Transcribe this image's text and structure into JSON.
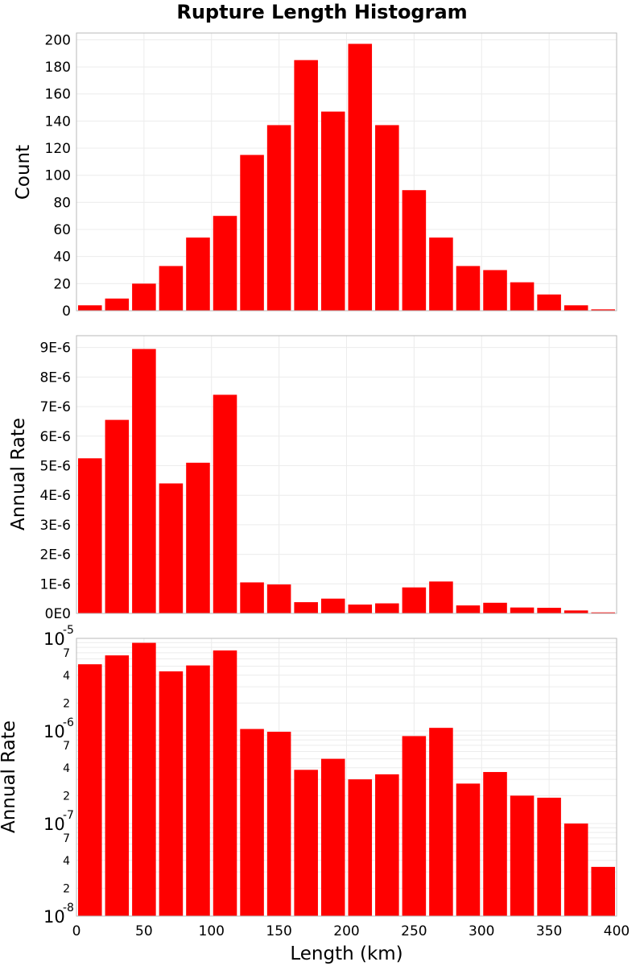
{
  "title": "Rupture Length Histogram",
  "colors": {
    "bar": "#ff0000",
    "grid": "#ececec",
    "frame": "#b9b9b9"
  },
  "chart_data": [
    {
      "type": "bar",
      "panel": "top",
      "ylabel": "Count",
      "xlabel": "",
      "ylim": [
        0,
        205
      ],
      "y_ticks": [
        0,
        20,
        40,
        60,
        80,
        100,
        120,
        140,
        160,
        180,
        200
      ],
      "y_tick_labels": [
        "0",
        "20",
        "40",
        "60",
        "80",
        "100",
        "120",
        "140",
        "160",
        "180",
        "200"
      ],
      "bin_width": 20,
      "bin_centers": [
        10,
        30,
        50,
        70,
        90,
        110,
        130,
        150,
        170,
        190,
        210,
        230,
        250,
        270,
        290,
        310,
        330,
        350,
        370,
        390
      ],
      "values": [
        4,
        9,
        20,
        33,
        54,
        70,
        115,
        137,
        185,
        147,
        197,
        137,
        89,
        54,
        33,
        30,
        21,
        12,
        4,
        1
      ],
      "grid": true
    },
    {
      "type": "bar",
      "panel": "middle",
      "ylabel": "Annual Rate",
      "xlabel": "",
      "ylim": [
        0,
        9.4e-06
      ],
      "y_ticks": [
        0,
        1e-06,
        2e-06,
        3e-06,
        4e-06,
        5e-06,
        6e-06,
        7e-06,
        8e-06,
        9e-06
      ],
      "y_tick_labels": [
        "0E0",
        "1E-6",
        "2E-6",
        "3E-6",
        "4E-6",
        "5E-6",
        "6E-6",
        "7E-6",
        "8E-6",
        "9E-6"
      ],
      "bin_width": 20,
      "bin_centers": [
        10,
        30,
        50,
        70,
        90,
        110,
        130,
        150,
        170,
        190,
        210,
        230,
        250,
        270,
        290,
        310,
        330,
        350,
        370,
        390
      ],
      "values": [
        5.25e-06,
        6.55e-06,
        8.95e-06,
        4.4e-06,
        5.1e-06,
        7.4e-06,
        1.05e-06,
        9.8e-07,
        3.8e-07,
        5e-07,
        3e-07,
        3.4e-07,
        8.8e-07,
        1.08e-06,
        2.7e-07,
        3.6e-07,
        2e-07,
        1.9e-07,
        1e-07,
        3.4e-08
      ],
      "grid": true
    },
    {
      "type": "bar",
      "panel": "bottom",
      "ylabel": "Annual Rate",
      "xlabel": "Length (km)",
      "yscale": "log",
      "ylim": [
        1e-08,
        1e-05
      ],
      "decade_ticks": [
        {
          "value": 1e-05,
          "base": "10",
          "exp": "-5"
        },
        {
          "value": 1e-06,
          "base": "10",
          "exp": "-6"
        },
        {
          "value": 1e-07,
          "base": "10",
          "exp": "-7"
        },
        {
          "value": 1e-08,
          "base": "10",
          "exp": "-8"
        }
      ],
      "minor_tick_labels": [
        "2",
        "4",
        "7"
      ],
      "xlim": [
        0,
        400
      ],
      "x_ticks": [
        0,
        50,
        100,
        150,
        200,
        250,
        300,
        350,
        400
      ],
      "x_tick_labels": [
        "0",
        "50",
        "100",
        "150",
        "200",
        "250",
        "300",
        "350",
        "400"
      ],
      "bin_width": 20,
      "bin_centers": [
        10,
        30,
        50,
        70,
        90,
        110,
        130,
        150,
        170,
        190,
        210,
        230,
        250,
        270,
        290,
        310,
        330,
        350,
        370,
        390
      ],
      "values": [
        5.25e-06,
        6.55e-06,
        8.95e-06,
        4.4e-06,
        5.1e-06,
        7.4e-06,
        1.05e-06,
        9.8e-07,
        3.8e-07,
        5e-07,
        3e-07,
        3.4e-07,
        8.8e-07,
        1.08e-06,
        2.7e-07,
        3.6e-07,
        2e-07,
        1.9e-07,
        1e-07,
        3.4e-08
      ],
      "grid": true
    }
  ]
}
